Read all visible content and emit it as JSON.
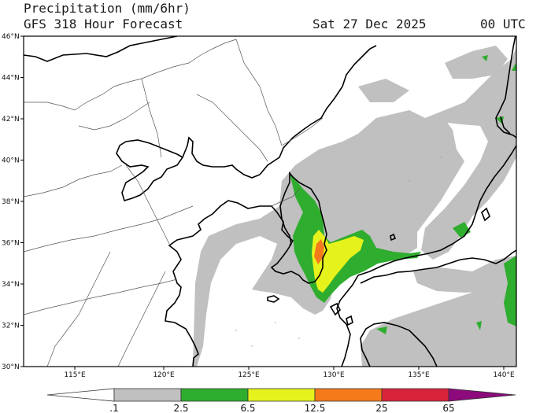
{
  "header": {
    "title": "Precipitation (mm/6hr)",
    "model": "GFS 318 Hour Forecast",
    "valid_date": "Sat 27 Dec 2025",
    "valid_time": "00 UTC"
  },
  "map": {
    "lat_labels": [
      "46°N",
      "44°N",
      "42°N",
      "40°N",
      "38°N",
      "36°N",
      "34°N",
      "32°N",
      "30°N"
    ],
    "lon_labels": [
      "115°E",
      "120°E",
      "125°E",
      "130°E",
      "135°E",
      "140°E"
    ]
  },
  "colorbar": {
    "labels": [
      ".1",
      "2.5",
      "6.5",
      "12.5",
      "25",
      "65"
    ],
    "colors": [
      "#ffffff",
      "#c0c0c0",
      "#2fad2f",
      "#e6f21b",
      "#f57a1c",
      "#d8243a",
      "#8c0a7c"
    ]
  }
}
